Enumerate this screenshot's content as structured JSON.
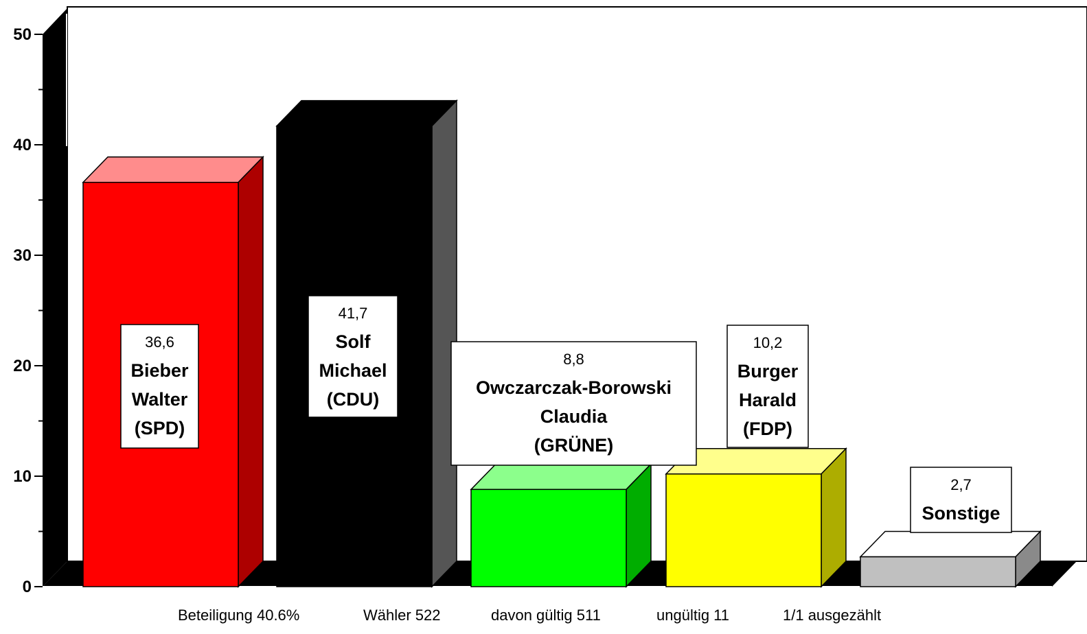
{
  "chart_data": {
    "type": "bar",
    "three_d": true,
    "title": "",
    "xlabel": "",
    "ylabel": "",
    "ylim": [
      0,
      50
    ],
    "yticks": [
      "0",
      "10",
      "20",
      "30",
      "40",
      "50"
    ],
    "grid": false,
    "legend": "none",
    "bars": [
      {
        "value": 36.6,
        "value_label": "36,6",
        "label_lines": [
          "Bieber",
          "Walter",
          "(SPD)"
        ],
        "color": "#ff0000"
      },
      {
        "value": 41.7,
        "value_label": "41,7",
        "label_lines": [
          "Solf",
          "Michael",
          "(CDU)"
        ],
        "color": "#000000"
      },
      {
        "value": 8.8,
        "value_label": "8,8",
        "label_lines": [
          "Owczarczak-Borowski",
          "Claudia",
          "(GRÜNE)"
        ],
        "color": "#00ff00"
      },
      {
        "value": 10.2,
        "value_label": "10,2",
        "label_lines": [
          "Burger",
          "Harald",
          "(FDP)"
        ],
        "color": "#ffff00"
      },
      {
        "value": 2.7,
        "value_label": "2,7",
        "label_lines": [
          "Sonstige"
        ],
        "color": "#c0c0c0"
      }
    ]
  },
  "footer": {
    "beteiligung": "Beteiligung 40.6%",
    "waehler": "Wähler 522",
    "gueltig": "davon gültig 511",
    "ungueltig": "ungültig 11",
    "ausgezaehlt": "1/1 ausgezählt"
  }
}
